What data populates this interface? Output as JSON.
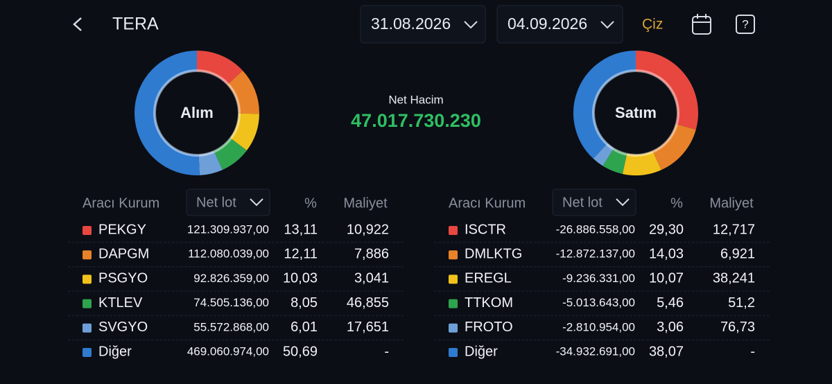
{
  "header": {
    "title": "TERA",
    "start_date": "31.08.2026",
    "end_date": "04.09.2026",
    "draw_button": "Çiz"
  },
  "net_volume": {
    "label": "Net Hacim",
    "value": "47.017.730.230"
  },
  "buy": {
    "title": "Alım",
    "columns": [
      "Aracı Kurum",
      "Net lot",
      "%",
      "Maliyet"
    ],
    "rows": [
      {
        "name": "PEKGY",
        "color": "#e8473f",
        "net_lot": "121.309.937,00",
        "pct": 13.11,
        "pct_label": "13,11",
        "cost": "10,922"
      },
      {
        "name": "DAPGM",
        "color": "#e8822a",
        "net_lot": "112.080.039,00",
        "pct": 12.11,
        "pct_label": "12,11",
        "cost": "7,886"
      },
      {
        "name": "PSGYO",
        "color": "#f1c21b",
        "net_lot": "92.826.359,00",
        "pct": 10.03,
        "pct_label": "10,03",
        "cost": "3,041"
      },
      {
        "name": "KTLEV",
        "color": "#2ea44f",
        "net_lot": "74.505.136,00",
        "pct": 8.05,
        "pct_label": "8,05",
        "cost": "46,855"
      },
      {
        "name": "SVGYO",
        "color": "#6f9fd8",
        "net_lot": "55.572.868,00",
        "pct": 6.01,
        "pct_label": "6,01",
        "cost": "17,651"
      },
      {
        "name": "Diğer",
        "color": "#2f7bd0",
        "net_lot": "469.060.974,00",
        "pct": 50.69,
        "pct_label": "50,69",
        "cost": "-"
      }
    ]
  },
  "sell": {
    "title": "Satım",
    "columns": [
      "Aracı Kurum",
      "Net lot",
      "%",
      "Maliyet"
    ],
    "rows": [
      {
        "name": "ISCTR",
        "color": "#e8473f",
        "net_lot": "-26.886.558,00",
        "pct": 29.3,
        "pct_label": "29,30",
        "cost": "12,717"
      },
      {
        "name": "DMLKTG",
        "color": "#e8822a",
        "net_lot": "-12.872.137,00",
        "pct": 14.03,
        "pct_label": "14,03",
        "cost": "6,921"
      },
      {
        "name": "EREGL",
        "color": "#f1c21b",
        "net_lot": "-9.236.331,00",
        "pct": 10.07,
        "pct_label": "10,07",
        "cost": "38,241"
      },
      {
        "name": "TTKOM",
        "color": "#2ea44f",
        "net_lot": "-5.013.643,00",
        "pct": 5.46,
        "pct_label": "5,46",
        "cost": "51,2"
      },
      {
        "name": "FROTO",
        "color": "#6f9fd8",
        "net_lot": "-2.810.954,00",
        "pct": 3.06,
        "pct_label": "3,06",
        "cost": "76,73"
      },
      {
        "name": "Diğer",
        "color": "#2f7bd0",
        "net_lot": "-34.932.691,00",
        "pct": 38.07,
        "pct_label": "38,07",
        "cost": "-"
      }
    ]
  }
}
